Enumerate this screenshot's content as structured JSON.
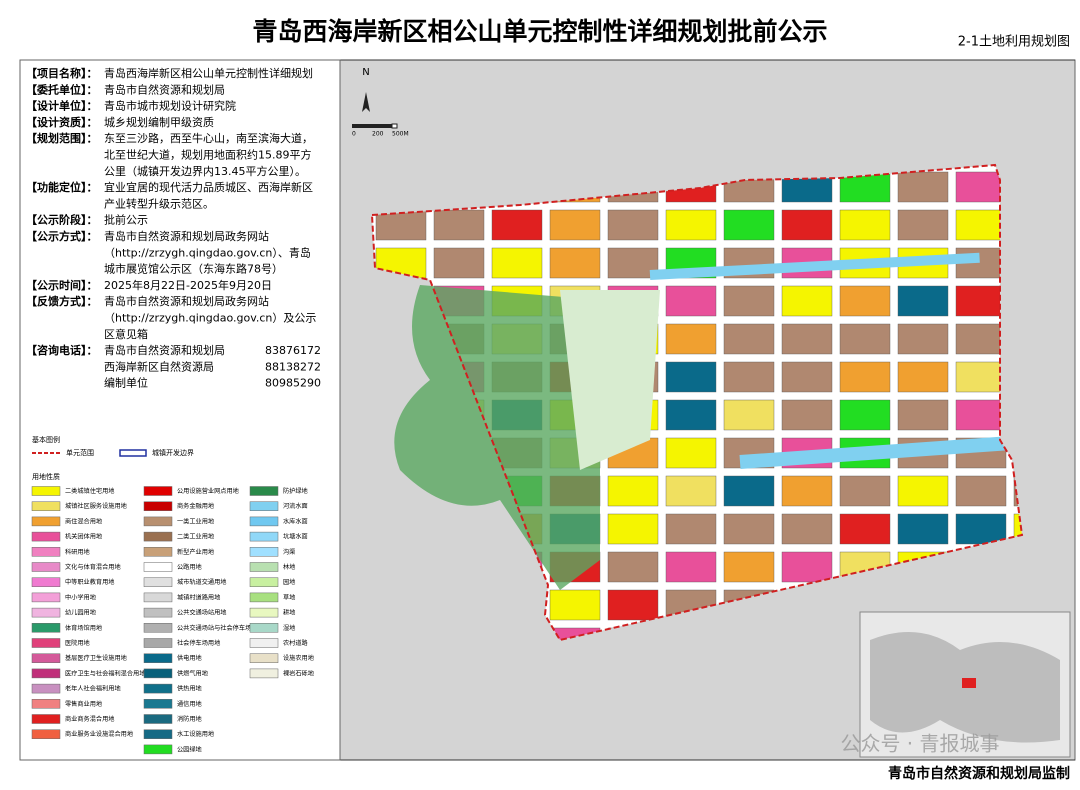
{
  "header": {
    "title": "青岛西海岸新区相公山单元控制性详细规划批前公示",
    "subtitle": "2-1土地利用规划图"
  },
  "info": [
    {
      "label": "【项目名称】：",
      "lines": [
        "青岛西海岸新区相公山单元控制性详细规划"
      ]
    },
    {
      "label": "【委托单位】：",
      "lines": [
        "青岛市自然资源和规划局"
      ]
    },
    {
      "label": "【设计单位】：",
      "lines": [
        "青岛市城市规划设计研究院"
      ]
    },
    {
      "label": "【设计资质】：",
      "lines": [
        "城乡规划编制甲级资质"
      ]
    },
    {
      "label": "【规划范围】：",
      "lines": [
        "东至三沙路，西至牛心山，南至滨海大道，",
        "北至世纪大道，规划用地面积约15.89平方",
        "公里（城镇开发边界内13.45平方公里）。"
      ]
    },
    {
      "label": "【功能定位】：",
      "lines": [
        "宜业宜居的现代活力品质城区、西海岸新区",
        "产业转型升级示范区。"
      ]
    },
    {
      "label": "【公示阶段】：",
      "lines": [
        "批前公示"
      ]
    },
    {
      "label": "【公示方式】：",
      "lines": [
        "青岛市自然资源和规划局政务网站",
        "（http://zrzygh.qingdao.gov.cn）、青岛",
        "城市展览馆公示区（东海东路78号）"
      ]
    },
    {
      "label": "【公示时间】：",
      "lines": [
        "2025年8月22日-2025年9月20日"
      ]
    },
    {
      "label": "【反馈方式】：",
      "lines": [
        "青岛市自然资源和规划局政务网站",
        "（http://zrzygh.qingdao.gov.cn）及公示",
        "区意见箱"
      ]
    }
  ],
  "contact": {
    "label": "【咨询电话】：",
    "entries": [
      {
        "name": "青岛市自然资源和规划局",
        "phone": "83876172"
      },
      {
        "name": "西海岸新区自然资源局",
        "phone": "88138272"
      },
      {
        "name": "编制单位",
        "phone": "80985290"
      }
    ]
  },
  "legend": {
    "basic_title": "基本图例",
    "basic": [
      "单元范围",
      "城镇开发边界"
    ],
    "landuse_title": "用地性质",
    "columns": [
      [
        {
          "label": "二类城镇住宅用地",
          "color": "#f5f500"
        },
        {
          "label": "城镇社区服务设施用地",
          "color": "#f0e060"
        },
        {
          "label": "商住混合用地",
          "color": "#f0a030"
        },
        {
          "label": "机关团体用地",
          "color": "#e8509a"
        },
        {
          "label": "科研用地",
          "color": "#f080c0"
        },
        {
          "label": "文化与体育混合用地",
          "color": "#e88ac8"
        },
        {
          "label": "中等职业教育用地",
          "color": "#f07ad0"
        },
        {
          "label": "中小学用地",
          "color": "#f3a0d8"
        },
        {
          "label": "幼儿园用地",
          "color": "#f0b4e0"
        },
        {
          "label": "体育场馆用地",
          "color": "#2a9a6a"
        },
        {
          "label": "医院用地",
          "color": "#e0407a"
        },
        {
          "label": "基层医疗卫生设施用地",
          "color": "#d45a9a"
        },
        {
          "label": "医疗卫生与社会福利混合用地",
          "color": "#c0307a"
        },
        {
          "label": "老年人社会福利用地",
          "color": "#c890c0"
        },
        {
          "label": "零售商业用地",
          "color": "#f08080"
        },
        {
          "label": "商业商务混合用地",
          "color": "#e02020"
        },
        {
          "label": "商业服务业设施混合用地",
          "color": "#f06040"
        }
      ],
      [
        {
          "label": "公用设施营业网点用地",
          "color": "#e00000"
        },
        {
          "label": "商务金融用地",
          "color": "#c80000"
        },
        {
          "label": "一类工业用地",
          "color": "#b89070"
        },
        {
          "label": "二类工业用地",
          "color": "#9a7050"
        },
        {
          "label": "新型产业用地",
          "color": "#c8a078"
        },
        {
          "label": "公路用地",
          "color": "#ffffff"
        },
        {
          "label": "城市轨道交通用地",
          "color": "#e0e0e0"
        },
        {
          "label": "城镇村道路用地",
          "color": "#d8d8d8"
        },
        {
          "label": "公共交通场站用地",
          "color": "#c0c0c0"
        },
        {
          "label": "公共交通场站与社会停车场混合用地",
          "color": "#b0b0b0"
        },
        {
          "label": "社会停车场用地",
          "color": "#a8a8a8"
        },
        {
          "label": "供电用地",
          "color": "#0a6a8a"
        },
        {
          "label": "供燃气用地",
          "color": "#08607a"
        },
        {
          "label": "供热用地",
          "color": "#10708a"
        },
        {
          "label": "通信用地",
          "color": "#1a7890"
        },
        {
          "label": "消防用地",
          "color": "#1a6a80"
        },
        {
          "label": "水工设施用地",
          "color": "#156a85"
        },
        {
          "label": "公园绿地",
          "color": "#22dd22"
        }
      ],
      [
        {
          "label": "防护绿地",
          "color": "#2a8a4a"
        },
        {
          "label": "河流水面",
          "color": "#80d0f0"
        },
        {
          "label": "水库水面",
          "color": "#70c8f0"
        },
        {
          "label": "坑塘水面",
          "color": "#90d8f8"
        },
        {
          "label": "沟渠",
          "color": "#a0e0ff"
        },
        {
          "label": "林地",
          "color": "#b8e0b0"
        },
        {
          "label": "园地",
          "color": "#c8f0a0"
        },
        {
          "label": "草地",
          "color": "#a8e080"
        },
        {
          "label": "耕地",
          "color": "#e8f8c0"
        },
        {
          "label": "湿地",
          "color": "#a8d8c8"
        },
        {
          "label": "农村道路",
          "color": "#f0f0f0"
        },
        {
          "label": "设施农用地",
          "color": "#e8e0c8"
        },
        {
          "label": "裸岩石砾地",
          "color": "#f0f0e0"
        }
      ]
    ]
  },
  "map": {
    "north": "N",
    "scale": [
      "0",
      "200",
      "500M"
    ]
  },
  "watermark": "公众号 · 青报城事",
  "footer": "青岛市自然资源和规划局监制"
}
